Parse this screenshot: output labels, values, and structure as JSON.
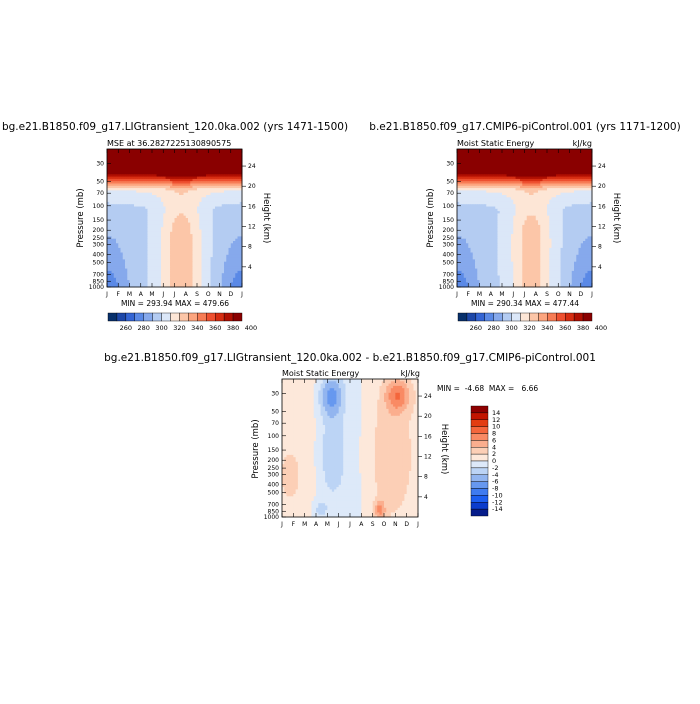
{
  "chart_data": [
    {
      "type": "heatmap",
      "title": "bg.e21.B1850.f09_g17.LIGtransient_120.0ka.002 (yrs 1471-1500)",
      "left_label": "MSE at 36.2827225130890575",
      "right_label": "",
      "stats": "MIN = 293.94  MAX = 479.66",
      "ylabel": "Pressure (mb)",
      "y2label": "Height (km)",
      "months": [
        "J",
        "F",
        "M",
        "A",
        "M",
        "J",
        "J",
        "A",
        "S",
        "O",
        "N",
        "D",
        "J"
      ],
      "pressure_ticks": [
        30,
        50,
        70,
        100,
        150,
        200,
        250,
        300,
        400,
        500,
        700,
        850,
        1000
      ],
      "height_ticks": [
        4,
        8,
        12,
        16,
        20,
        24
      ],
      "colorbar": {
        "orientation": "horizontal",
        "labels": [
          "260",
          "280",
          "300",
          "320",
          "340",
          "360",
          "380",
          "400"
        ]
      }
    },
    {
      "type": "heatmap",
      "title": "b.e21.B1850.f09_g17.CMIP6-piControl.001 (yrs 1171-1200)",
      "left_label": "Moist Static Energy",
      "right_label": "kJ/kg",
      "stats": "MIN = 290.34  MAX = 477.44",
      "ylabel": "Pressure (mb)",
      "y2label": "Height (km)",
      "months": [
        "J",
        "F",
        "M",
        "A",
        "M",
        "J",
        "J",
        "A",
        "S",
        "O",
        "N",
        "D",
        "J"
      ],
      "pressure_ticks": [
        30,
        50,
        70,
        100,
        150,
        200,
        250,
        300,
        400,
        500,
        700,
        850,
        1000
      ],
      "height_ticks": [
        4,
        8,
        12,
        16,
        20,
        24
      ],
      "colorbar": {
        "orientation": "horizontal",
        "labels": [
          "260",
          "280",
          "300",
          "320",
          "340",
          "360",
          "380",
          "400"
        ]
      }
    },
    {
      "type": "heatmap",
      "title": "bg.e21.B1850.f09_g17.LIGtransient_120.0ka.002 - b.e21.B1850.f09_g17.CMIP6-piControl.001",
      "left_label": "Moist Static Energy",
      "right_label": "kJ/kg",
      "stats": "MIN =  -4.68  MAX =   6.66",
      "ylabel": "Pressure (mb)",
      "y2label": "Height (km)",
      "months": [
        "J",
        "F",
        "M",
        "A",
        "M",
        "J",
        "J",
        "A",
        "S",
        "O",
        "N",
        "D",
        "J"
      ],
      "pressure_ticks": [
        30,
        50,
        70,
        100,
        150,
        200,
        250,
        300,
        400,
        500,
        700,
        850,
        1000
      ],
      "height_ticks": [
        4,
        8,
        12,
        16,
        20,
        24
      ],
      "colorbar": {
        "orientation": "vertical",
        "labels": [
          "14",
          "12",
          "10",
          "8",
          "6",
          "4",
          "2",
          "0",
          "-2",
          "-4",
          "-6",
          "-8",
          "-10",
          "-12",
          "-14"
        ]
      }
    }
  ],
  "colors": {
    "abs_scale": [
      "#08306b",
      "#1d47a8",
      "#3465d4",
      "#5a89e6",
      "#86a9ec",
      "#b4ccf2",
      "#dbe7f8",
      "#fde6d6",
      "#fcc6a8",
      "#fca57f",
      "#f77c55",
      "#ee5030",
      "#d62d12",
      "#b00f02",
      "#8a0000"
    ],
    "diff_scale": [
      "#061c8a",
      "#0b3ccc",
      "#1c5ef0",
      "#3f7bf0",
      "#6798ef",
      "#92b5ef",
      "#bcd4f5",
      "#dde9f9",
      "#fde8da",
      "#fccfb6",
      "#fbae8e",
      "#f98a64",
      "#f4663c",
      "#e23d12",
      "#c21500",
      "#8e0000"
    ]
  }
}
